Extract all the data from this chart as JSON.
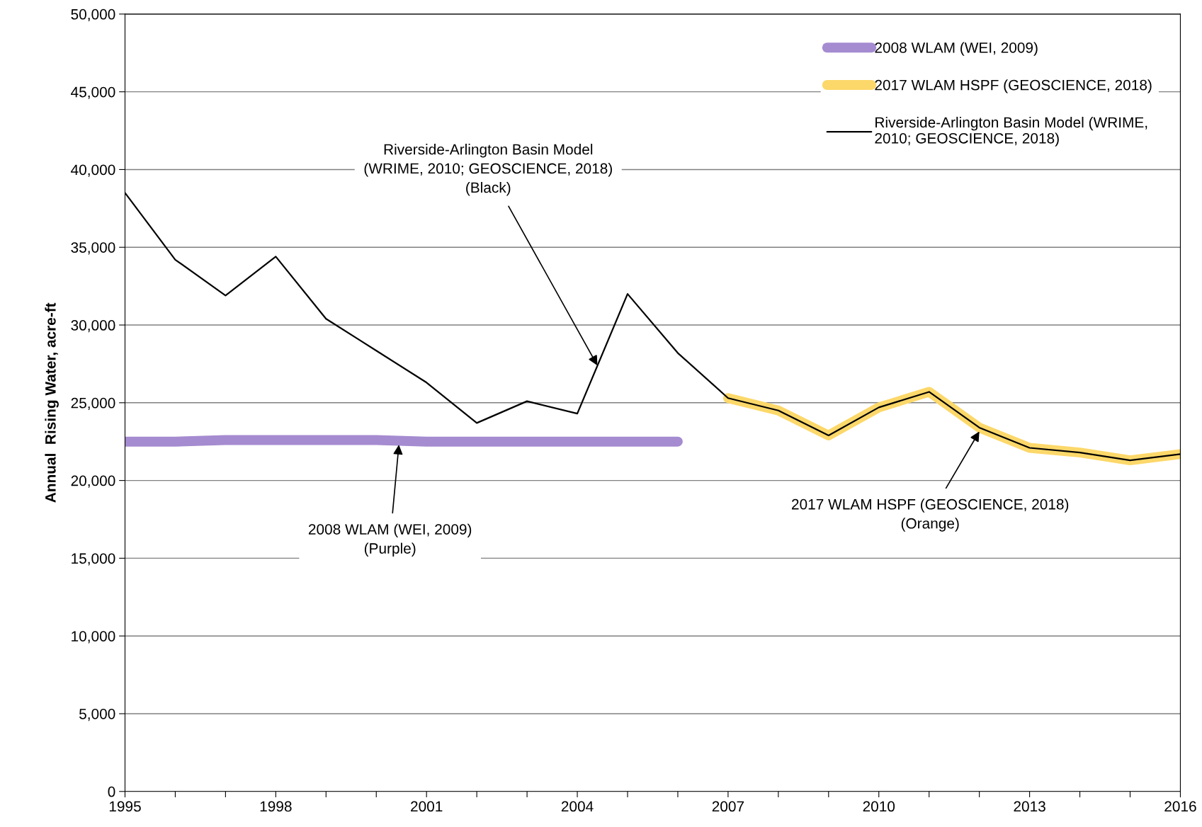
{
  "chart_data": {
    "type": "line",
    "ylabel": "Annual  Rising Water, acre-ft",
    "x": [
      1995,
      1996,
      1997,
      1998,
      1999,
      2000,
      2001,
      2002,
      2003,
      2004,
      2005,
      2006,
      2007,
      2008,
      2009,
      2010,
      2011,
      2012,
      2013,
      2014,
      2015,
      2016
    ],
    "series": [
      {
        "name": "2008 WLAM (WEI, 2009)",
        "color": "#a58bd0",
        "x": [
          1995,
          1996,
          1997,
          1998,
          1999,
          2000,
          2001,
          2002,
          2003,
          2004,
          2005,
          2006
        ],
        "values": [
          22500,
          22500,
          22600,
          22600,
          22600,
          22600,
          22500,
          22500,
          22500,
          22500,
          22500,
          22500
        ]
      },
      {
        "name": "2017 WLAM HSPF (GEOSCIENCE, 2018)",
        "color": "#fcd86a",
        "x": [
          2007,
          2008,
          2009,
          2010,
          2011,
          2012,
          2013,
          2014,
          2015,
          2016
        ],
        "values": [
          25300,
          24500,
          22900,
          24700,
          25700,
          23400,
          22100,
          21800,
          21300,
          21700
        ]
      },
      {
        "name": "Riverside-Arlington Basin Model (WRIME,\n2010; GEOSCIENCE, 2018)",
        "color": "#000000",
        "values": [
          38500,
          34200,
          31900,
          34400,
          30400,
          28350,
          26300,
          23700,
          25100,
          24300,
          32000,
          28200,
          25300,
          24500,
          22900,
          24700,
          25700,
          23400,
          22100,
          21800,
          21300,
          21700
        ]
      }
    ],
    "xlim": [
      1995,
      2016
    ],
    "xticks": [
      1995,
      {
        "value": 1996,
        "label": null
      },
      {
        "value": 1997,
        "label": null
      },
      1998,
      {
        "value": 1999,
        "label": null
      },
      {
        "value": 2000,
        "label": null
      },
      2001,
      {
        "value": 2002,
        "label": null
      },
      {
        "value": 2003,
        "label": null
      },
      2004,
      {
        "value": 2005,
        "label": null
      },
      {
        "value": 2006,
        "label": null
      },
      2007,
      {
        "value": 2008,
        "label": null
      },
      {
        "value": 2009,
        "label": null
      },
      2010,
      {
        "value": 2011,
        "label": null
      },
      {
        "value": 2012,
        "label": null
      },
      2013,
      {
        "value": 2014,
        "label": null
      },
      {
        "value": 2015,
        "label": null
      },
      2016
    ],
    "ylim": [
      0,
      50000
    ],
    "yticks": [
      {
        "value": 0,
        "label": "0"
      },
      {
        "value": 5000,
        "label": "5,000"
      },
      {
        "value": 10000,
        "label": "10,000"
      },
      {
        "value": 15000,
        "label": "15,000"
      },
      {
        "value": 20000,
        "label": "20,000"
      },
      {
        "value": 25000,
        "label": "25,000"
      },
      {
        "value": 30000,
        "label": "30,000"
      },
      {
        "value": 35000,
        "label": "35,000"
      },
      {
        "value": 40000,
        "label": "40,000"
      },
      {
        "value": 45000,
        "label": "45,000"
      },
      {
        "value": 50000,
        "label": "50,000"
      }
    ],
    "grid": "y",
    "legend": "top right",
    "marker": "none",
    "line_style": "solid",
    "annotations": [
      {
        "text": "Riverside-Arlington Basin Model\n(WRIME, 2010; GEOSCIENCE, 2018)\n(Black)",
        "x": 2004.4,
        "y": 27400
      },
      {
        "text": "2008 WLAM (WEI, 2009)\n(Purple)",
        "x": 2000.45,
        "y": 22300
      },
      {
        "text": "2017 WLAM HSPF (GEOSCIENCE, 2018)\n(Orange)",
        "x": 2012,
        "y": 23150
      }
    ]
  }
}
